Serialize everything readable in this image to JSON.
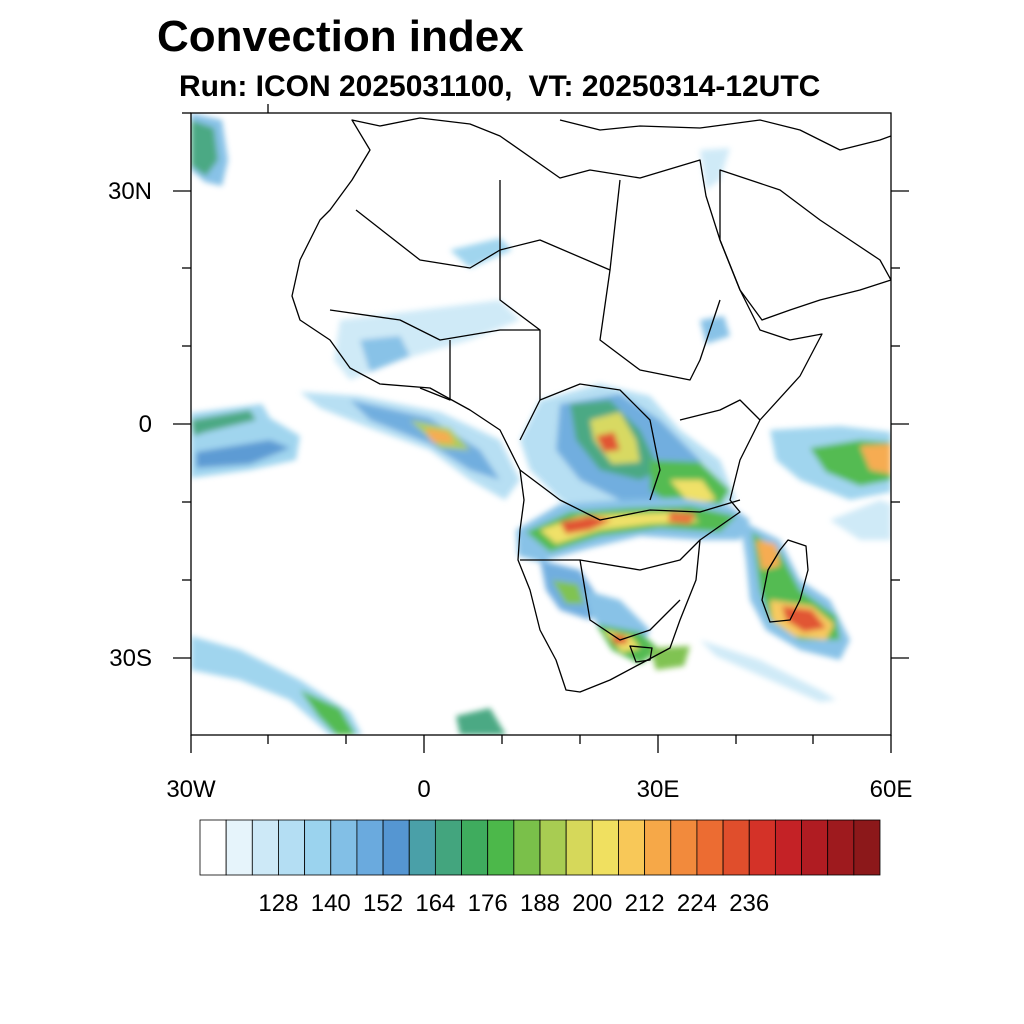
{
  "title": "Convection index",
  "subtitle": {
    "run": "Run: ICON 2025031100,",
    "vt": "VT: 20250314-12UTC"
  },
  "map": {
    "region": "Africa",
    "lon_range": [
      -30,
      60
    ],
    "lat_range": [
      -40,
      40
    ],
    "lat_labels": [
      "30N",
      "0",
      "30S"
    ],
    "lon_labels": [
      "30W",
      "0",
      "30E",
      "60E"
    ]
  },
  "colorbar": {
    "colors": [
      "#ffffff",
      "#e6f4fb",
      "#cde9f7",
      "#b4def3",
      "#9bd3ee",
      "#82bfe6",
      "#6aaade",
      "#5596d2",
      "#4aa0a8",
      "#43a57e",
      "#3fac5e",
      "#4cb84a",
      "#7ac04a",
      "#a8cc52",
      "#d6d85a",
      "#f0e060",
      "#f8c858",
      "#f6a848",
      "#f28a3c",
      "#ec6c32",
      "#e04e2c",
      "#d43228",
      "#c42226",
      "#b01c22",
      "#9e1a1e",
      "#8c181a"
    ],
    "tick_labels": [
      "128",
      "140",
      "152",
      "164",
      "176",
      "188",
      "200",
      "212",
      "224",
      "236"
    ]
  }
}
